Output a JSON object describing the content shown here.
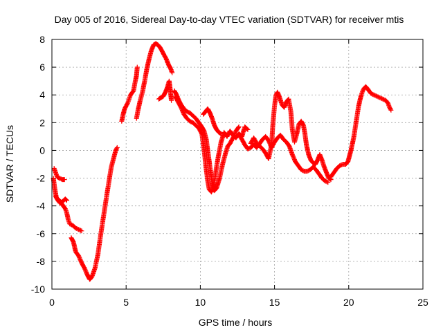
{
  "chart_data": {
    "type": "scatter",
    "title": "Day 005 of 2016, Sidereal Day-to-day VTEC variation (SDTVAR) for receiver mtis",
    "xlabel": "GPS time / hours",
    "ylabel": "SDTVAR / TECUs",
    "xlim": [
      0,
      25
    ],
    "ylim": [
      -10,
      8
    ],
    "xticks": [
      0,
      5,
      10,
      15,
      20,
      25
    ],
    "yticks": [
      -10,
      -8,
      -6,
      -4,
      -2,
      0,
      2,
      4,
      6,
      8
    ],
    "grid": true,
    "marker": "plus",
    "color": "#ff0000",
    "series": [
      {
        "values": [
          [
            0.15,
            -1.3
          ],
          [
            0.25,
            -1.6
          ],
          [
            0.35,
            -1.9
          ],
          [
            0.5,
            -2.0
          ],
          [
            0.7,
            -2.1
          ],
          [
            0.85,
            -2.1
          ]
        ]
      },
      {
        "values": [
          [
            0.1,
            -2.0
          ],
          [
            0.2,
            -2.8
          ],
          [
            0.3,
            -3.4
          ],
          [
            0.5,
            -3.6
          ],
          [
            0.7,
            -3.9
          ],
          [
            0.9,
            -4.2
          ],
          [
            1.0,
            -4.5
          ],
          [
            1.1,
            -5.0
          ],
          [
            1.2,
            -5.3
          ],
          [
            1.4,
            -5.4
          ],
          [
            1.6,
            -5.6
          ],
          [
            1.8,
            -5.7
          ],
          [
            2.0,
            -5.8
          ]
        ]
      },
      {
        "values": [
          [
            0.25,
            -3.3
          ],
          [
            0.4,
            -3.6
          ],
          [
            0.55,
            -3.8
          ],
          [
            0.7,
            -3.7
          ],
          [
            0.9,
            -3.5
          ],
          [
            1.0,
            -3.6
          ]
        ]
      },
      {
        "values": [
          [
            1.3,
            -6.3
          ],
          [
            1.45,
            -6.6
          ],
          [
            1.6,
            -7.3
          ],
          [
            1.8,
            -7.6
          ],
          [
            2.0,
            -8.1
          ],
          [
            2.2,
            -8.5
          ],
          [
            2.4,
            -9.0
          ],
          [
            2.55,
            -9.3
          ],
          [
            2.7,
            -9.1
          ],
          [
            2.9,
            -8.5
          ],
          [
            3.1,
            -7.5
          ],
          [
            3.3,
            -6.0
          ],
          [
            3.5,
            -4.6
          ],
          [
            3.7,
            -3.2
          ],
          [
            3.85,
            -2.2
          ],
          [
            4.0,
            -1.2
          ],
          [
            4.15,
            -0.6
          ],
          [
            4.3,
            0.0
          ],
          [
            4.4,
            0.2
          ]
        ]
      },
      {
        "values": [
          [
            4.7,
            2.1
          ],
          [
            4.8,
            2.6
          ],
          [
            4.9,
            3.0
          ],
          [
            5.1,
            3.4
          ],
          [
            5.3,
            4.0
          ],
          [
            5.5,
            4.3
          ],
          [
            5.6,
            4.9
          ],
          [
            5.7,
            5.4
          ],
          [
            5.75,
            6.0
          ]
        ]
      },
      {
        "values": [
          [
            5.7,
            2.3
          ],
          [
            5.8,
            2.9
          ],
          [
            5.95,
            3.6
          ],
          [
            6.1,
            4.2
          ],
          [
            6.25,
            5.0
          ],
          [
            6.4,
            5.9
          ],
          [
            6.55,
            6.6
          ],
          [
            6.7,
            7.2
          ],
          [
            6.85,
            7.6
          ],
          [
            7.0,
            7.7
          ],
          [
            7.15,
            7.6
          ],
          [
            7.3,
            7.4
          ],
          [
            7.5,
            7.0
          ],
          [
            7.7,
            6.6
          ],
          [
            7.85,
            6.2
          ],
          [
            8.0,
            5.9
          ],
          [
            8.1,
            5.6
          ]
        ]
      },
      {
        "values": [
          [
            7.2,
            3.7
          ],
          [
            7.35,
            3.8
          ],
          [
            7.5,
            3.9
          ],
          [
            7.65,
            4.2
          ],
          [
            7.8,
            4.6
          ],
          [
            7.9,
            5.0
          ],
          [
            7.95,
            4.6
          ],
          [
            8.0,
            4.1
          ],
          [
            8.05,
            3.6
          ]
        ]
      },
      {
        "values": [
          [
            8.25,
            4.3
          ],
          [
            8.4,
            4.0
          ],
          [
            8.55,
            3.6
          ],
          [
            8.7,
            3.3
          ],
          [
            8.9,
            3.0
          ],
          [
            9.1,
            2.8
          ],
          [
            9.3,
            2.7
          ],
          [
            9.5,
            2.5
          ],
          [
            9.7,
            2.3
          ],
          [
            9.9,
            2.0
          ],
          [
            10.1,
            1.7
          ],
          [
            10.25,
            1.4
          ],
          [
            10.4,
            0.8
          ],
          [
            10.5,
            0.0
          ],
          [
            10.6,
            -0.8
          ],
          [
            10.7,
            -1.6
          ],
          [
            10.8,
            -2.4
          ],
          [
            10.95,
            -2.9
          ],
          [
            11.1,
            -2.7
          ],
          [
            11.3,
            -2.0
          ],
          [
            11.5,
            -1.0
          ],
          [
            11.7,
            -0.2
          ],
          [
            11.85,
            0.3
          ],
          [
            12.0,
            0.5
          ],
          [
            12.2,
            0.9
          ],
          [
            12.4,
            1.4
          ],
          [
            12.6,
            1.7
          ]
        ]
      },
      {
        "values": [
          [
            8.3,
            3.9
          ],
          [
            8.5,
            3.5
          ],
          [
            8.7,
            3.1
          ],
          [
            8.9,
            2.6
          ],
          [
            9.1,
            2.3
          ],
          [
            9.3,
            2.1
          ],
          [
            9.5,
            2.0
          ],
          [
            9.7,
            1.8
          ],
          [
            9.9,
            1.6
          ],
          [
            10.1,
            1.2
          ],
          [
            10.2,
            0.5
          ],
          [
            10.3,
            -0.4
          ],
          [
            10.4,
            -1.4
          ],
          [
            10.5,
            -2.2
          ],
          [
            10.6,
            -2.8
          ],
          [
            10.75,
            -3.0
          ],
          [
            10.9,
            -2.6
          ],
          [
            11.05,
            -1.5
          ],
          [
            11.2,
            -0.5
          ],
          [
            11.4,
            0.6
          ],
          [
            11.6,
            1.3
          ],
          [
            11.8,
            1.0
          ],
          [
            12.0,
            1.4
          ],
          [
            12.2,
            1.1
          ],
          [
            12.4,
            0.9
          ],
          [
            12.6,
            1.2
          ],
          [
            12.8,
            1.0
          ],
          [
            13.0,
            1.7
          ],
          [
            13.2,
            1.5
          ]
        ]
      },
      {
        "values": [
          [
            10.2,
            2.6
          ],
          [
            10.35,
            2.8
          ],
          [
            10.5,
            3.0
          ],
          [
            10.65,
            2.7
          ],
          [
            10.8,
            2.3
          ],
          [
            10.95,
            1.8
          ],
          [
            11.1,
            1.5
          ],
          [
            11.25,
            1.3
          ],
          [
            11.4,
            1.2
          ]
        ]
      },
      {
        "values": [
          [
            12.6,
            1.2
          ],
          [
            12.8,
            0.8
          ],
          [
            13.0,
            0.4
          ],
          [
            13.2,
            0.1
          ],
          [
            13.4,
            0.2
          ],
          [
            13.6,
            0.4
          ],
          [
            13.8,
            0.2
          ],
          [
            14.0,
            0.5
          ],
          [
            14.2,
            0.8
          ],
          [
            14.4,
            1.0
          ],
          [
            14.6,
            0.7
          ],
          [
            14.8,
            0.2
          ],
          [
            15.0,
            0.6
          ],
          [
            15.2,
            0.9
          ],
          [
            15.4,
            1.1
          ],
          [
            15.6,
            0.8
          ],
          [
            15.8,
            0.6
          ],
          [
            16.0,
            0.3
          ],
          [
            16.2,
            -0.3
          ],
          [
            16.4,
            -0.8
          ],
          [
            16.6,
            -1.1
          ],
          [
            16.8,
            -1.4
          ],
          [
            17.0,
            -1.5
          ],
          [
            17.2,
            -1.5
          ],
          [
            17.4,
            -1.4
          ],
          [
            17.6,
            -1.2
          ],
          [
            17.8,
            -1.4
          ],
          [
            18.0,
            -1.7
          ],
          [
            18.2,
            -2.0
          ],
          [
            18.4,
            -2.2
          ],
          [
            18.6,
            -2.3
          ]
        ]
      },
      {
        "values": [
          [
            13.4,
            0.5
          ],
          [
            13.6,
            0.9
          ],
          [
            13.8,
            0.5
          ],
          [
            14.0,
            0.3
          ],
          [
            14.2,
            0.1
          ],
          [
            14.4,
            -0.2
          ],
          [
            14.6,
            -0.6
          ],
          [
            14.8,
            0.4
          ],
          [
            14.9,
            2.0
          ],
          [
            15.0,
            3.2
          ],
          [
            15.1,
            4.0
          ],
          [
            15.2,
            4.2
          ],
          [
            15.35,
            3.8
          ],
          [
            15.5,
            3.3
          ],
          [
            15.65,
            3.1
          ],
          [
            15.8,
            3.5
          ],
          [
            15.95,
            3.7
          ],
          [
            16.1,
            2.8
          ],
          [
            16.2,
            1.5
          ],
          [
            16.35,
            0.6
          ],
          [
            16.5,
            1.2
          ],
          [
            16.65,
            1.9
          ],
          [
            16.8,
            2.1
          ],
          [
            16.95,
            1.8
          ],
          [
            17.05,
            1.2
          ],
          [
            17.15,
            0.4
          ],
          [
            17.3,
            -0.3
          ],
          [
            17.45,
            -0.7
          ],
          [
            17.6,
            -0.9
          ],
          [
            17.75,
            -1.0
          ],
          [
            17.9,
            -0.7
          ],
          [
            18.05,
            -0.3
          ],
          [
            18.2,
            -0.7
          ],
          [
            18.35,
            -1.2
          ],
          [
            18.5,
            -1.6
          ],
          [
            18.65,
            -2.0
          ],
          [
            18.8,
            -2.1
          ]
        ]
      },
      {
        "values": [
          [
            18.8,
            -1.9
          ],
          [
            19.0,
            -1.6
          ],
          [
            19.2,
            -1.3
          ],
          [
            19.4,
            -1.1
          ],
          [
            19.6,
            -1.0
          ],
          [
            19.8,
            -1.0
          ],
          [
            19.95,
            -0.8
          ],
          [
            20.05,
            -0.4
          ],
          [
            20.15,
            0.0
          ],
          [
            20.25,
            0.5
          ],
          [
            20.35,
            1.0
          ],
          [
            20.45,
            1.7
          ],
          [
            20.55,
            2.4
          ],
          [
            20.65,
            3.1
          ],
          [
            20.75,
            3.6
          ],
          [
            20.85,
            4.0
          ],
          [
            20.95,
            4.3
          ],
          [
            21.05,
            4.5
          ],
          [
            21.15,
            4.6
          ],
          [
            21.3,
            4.4
          ],
          [
            21.5,
            4.1
          ],
          [
            21.7,
            4.0
          ],
          [
            21.9,
            3.9
          ],
          [
            22.1,
            3.8
          ],
          [
            22.3,
            3.7
          ],
          [
            22.5,
            3.6
          ],
          [
            22.65,
            3.4
          ],
          [
            22.75,
            3.1
          ],
          [
            22.85,
            2.9
          ]
        ]
      }
    ]
  }
}
